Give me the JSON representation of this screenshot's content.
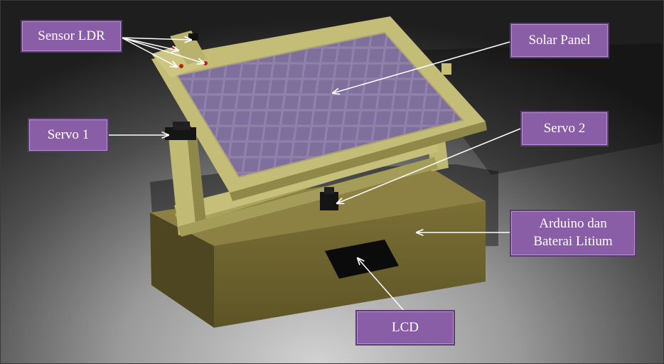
{
  "labels": {
    "sensor_ldr": "Sensor LDR",
    "solar_panel": "Solar Panel",
    "servo_1": "Servo 1",
    "servo_2": "Servo 2",
    "arduino": "Arduino dan\nBaterai Litium",
    "lcd": "LCD"
  },
  "colors": {
    "label_fill": "#8a5ea6",
    "label_border": "#5b3a76",
    "frame": "#bdb770",
    "box": "#7d7238",
    "panel_cell": "#8777a0",
    "arrow": "#ffffff"
  }
}
